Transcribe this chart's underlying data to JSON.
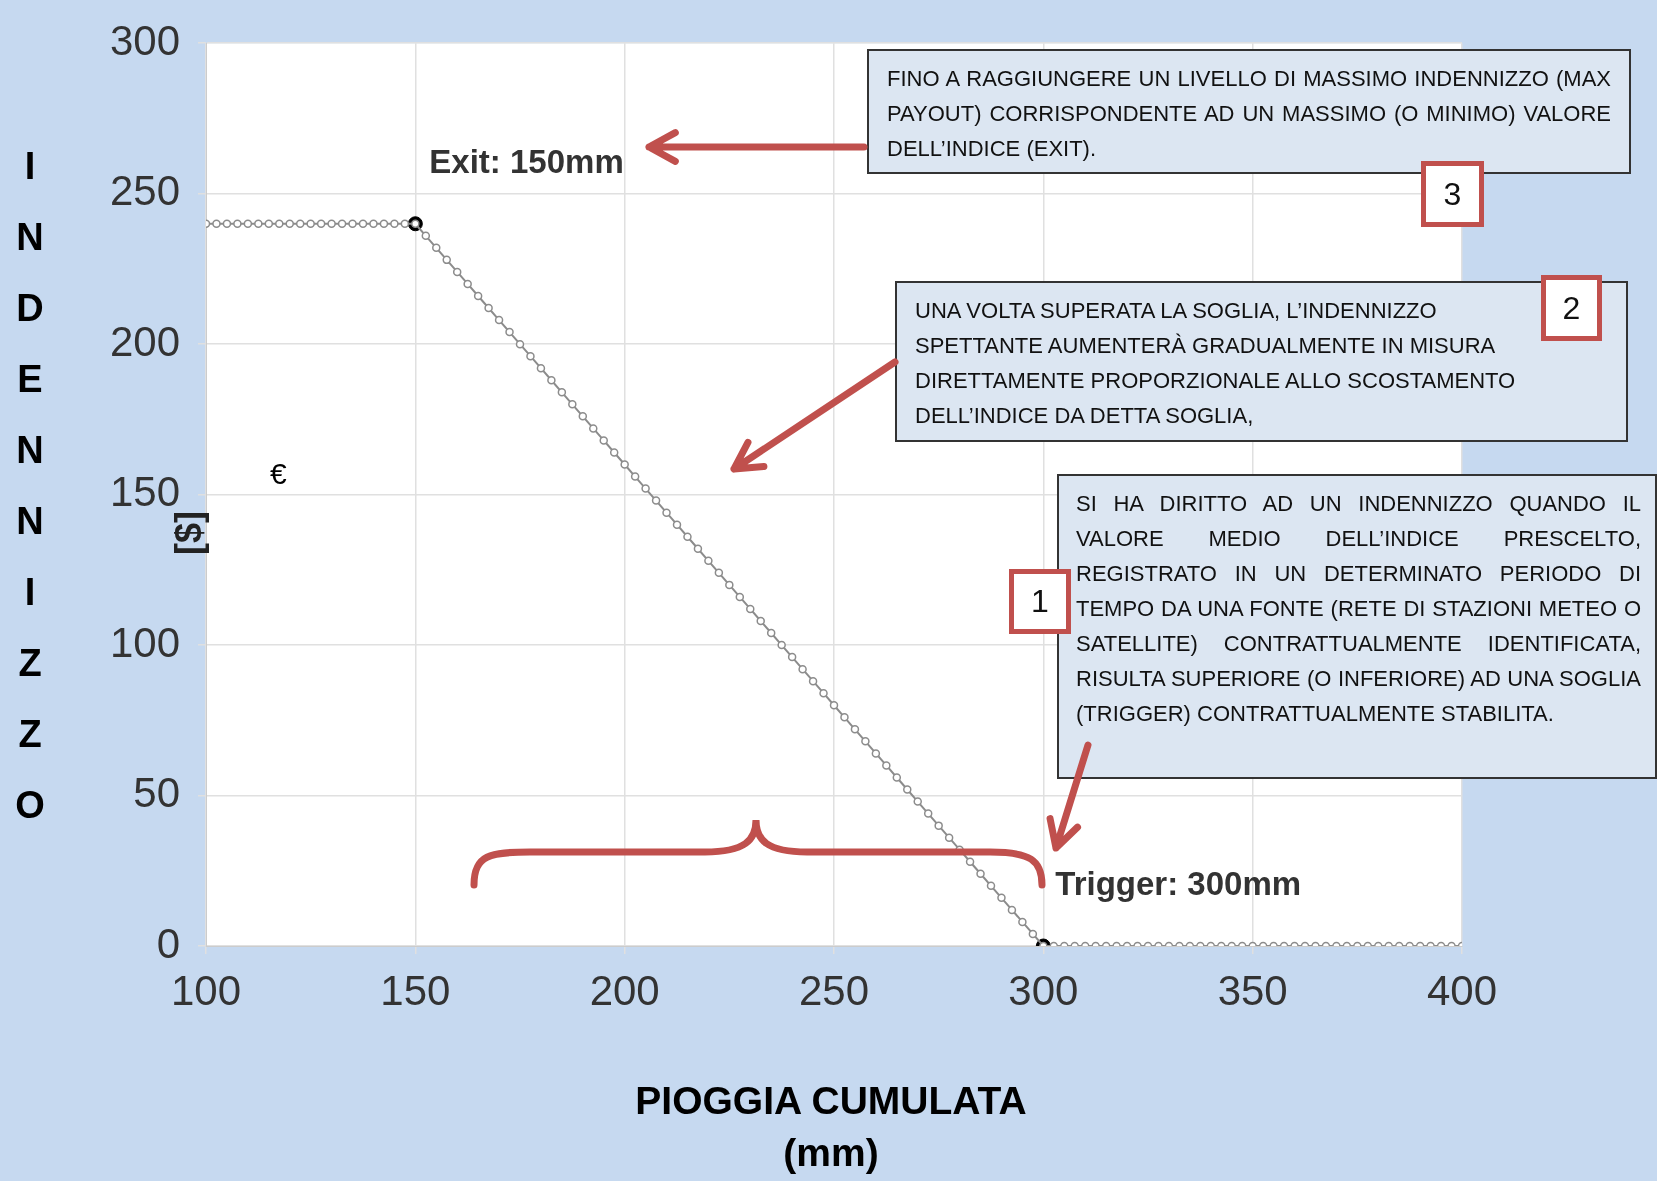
{
  "chart_data": {
    "type": "line",
    "xlabel": "PIOGGIA CUMULATA (mm)",
    "ylabel": "INDENNIZZO",
    "xlim": [
      100,
      400
    ],
    "xticks": [
      100,
      150,
      200,
      250,
      300,
      350,
      400
    ],
    "ylim": [
      0,
      300
    ],
    "yticks": [
      0,
      50,
      100,
      150,
      200,
      250,
      300
    ],
    "grid": true,
    "marker": "circle",
    "series": [
      {
        "type": "line",
        "color": "#8c8c8c",
        "x": [
          100,
          102.5,
          105,
          107.5,
          110,
          112.5,
          115,
          117.5,
          120,
          122.5,
          125,
          127.5,
          130,
          132.5,
          135,
          137.5,
          140,
          142.5,
          145,
          147.5,
          150,
          152.5,
          155,
          157.5,
          160,
          162.5,
          165,
          167.5,
          170,
          172.5,
          175,
          177.5,
          180,
          182.5,
          185,
          187.5,
          190,
          192.5,
          195,
          197.5,
          200,
          202.5,
          205,
          207.5,
          210,
          212.5,
          215,
          217.5,
          220,
          222.5,
          225,
          227.5,
          230,
          232.5,
          235,
          237.5,
          240,
          242.5,
          245,
          247.5,
          250,
          252.5,
          255,
          257.5,
          260,
          262.5,
          265,
          267.5,
          270,
          272.5,
          275,
          277.5,
          280,
          282.5,
          285,
          287.5,
          290,
          292.5,
          295,
          297.5,
          300,
          302.5,
          305,
          307.5,
          310,
          312.5,
          315,
          317.5,
          320,
          322.5,
          325,
          327.5,
          330,
          332.5,
          335,
          337.5,
          340,
          342.5,
          345,
          347.5,
          350,
          352.5,
          355,
          357.5,
          360,
          362.5,
          365,
          367.5,
          370,
          372.5,
          375,
          377.5,
          380,
          382.5,
          385,
          387.5,
          390,
          392.5,
          395,
          397.5,
          400
        ],
        "values": [
          240,
          240,
          240,
          240,
          240,
          240,
          240,
          240,
          240,
          240,
          240,
          240,
          240,
          240,
          240,
          240,
          240,
          240,
          240,
          240,
          240,
          236,
          232,
          228,
          224,
          220,
          216,
          212,
          208,
          204,
          200,
          196,
          192,
          188,
          184,
          180,
          176,
          172,
          168,
          164,
          160,
          156,
          152,
          148,
          144,
          140,
          136,
          132,
          128,
          124,
          120,
          116,
          112,
          108,
          104,
          100,
          96,
          92,
          88,
          84,
          80,
          76,
          72,
          68,
          64,
          60,
          56,
          52,
          48,
          44,
          40,
          36,
          32,
          28,
          24,
          20,
          16,
          12,
          8,
          4,
          0,
          0,
          0,
          0,
          0,
          0,
          0,
          0,
          0,
          0,
          0,
          0,
          0,
          0,
          0,
          0,
          0,
          0,
          0,
          0,
          0,
          0,
          0,
          0,
          0,
          0,
          0,
          0,
          0,
          0,
          0,
          0,
          0,
          0,
          0,
          0,
          0,
          0,
          0,
          0,
          0
        ]
      },
      {
        "type": "scatter",
        "color": "#000000",
        "x": [
          150,
          300
        ],
        "values": [
          240,
          0
        ]
      }
    ],
    "annotations": [
      {
        "text": "Exit: 150mm",
        "x": 150,
        "y": 240
      },
      {
        "text": "Trigger: 300mm",
        "x": 300,
        "y": 0
      },
      "FINO A RAGGIUNGERE UN LIVELLO DI MASSIMO INDENNIZZO (MAX PAYOUT) CORRISPONDENTE AD UN MASSIMO (O MINIMO) VALORE DELL’INDICE (EXIT).",
      "3",
      "UNA VOLTA SUPERATA LA SOGLIA, L’INDENNIZZO SPETTANTE AUMENTERÀ GRADUALMENTE IN MISURA DIRETTAMENTE PROPORZIONALE ALLO SCOSTAMENTO DELL’INDICE DA DETTA SOGLIA,",
      "2",
      "SI HA DIRITTO AD UN INDENNIZZO QUANDO IL VALORE MEDIO DELL’INDICE PRESCELTO, REGISTRATO IN UN DETERMINATO PERIODO DI TEMPO DA UNA FONTE (RETE DI STAZIONI METEO O SATELLITE) CONTRATTUALMENTE IDENTIFICATA, RISULTA SUPERIORE (O INFERIORE) AD UNA SOGLIA (TRIGGER) CONTRATTUALMENTE STABILITA.",
      "1",
      "[$]",
      "€"
    ]
  }
}
